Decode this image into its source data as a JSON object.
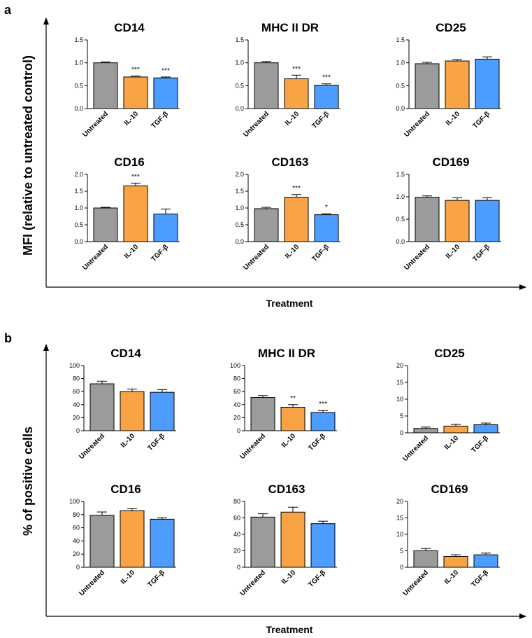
{
  "panels": [
    {
      "letter": "a",
      "ylabel": "MFI (relative to untreated control)",
      "xlabel": "Treatment"
    },
    {
      "letter": "b",
      "ylabel": "% of positive cells",
      "xlabel": "Treatment"
    }
  ],
  "colors": {
    "Untreated": "#9b9b9b",
    "IL-10": "#f9a347",
    "TGF-β": "#4c9dff"
  },
  "chart_data": [
    {
      "panel": "a",
      "type": "bar",
      "title": "CD14",
      "categories": [
        "Untreated",
        "IL-10",
        "TGF-β"
      ],
      "values": [
        1.0,
        0.69,
        0.67
      ],
      "errors": [
        0.02,
        0.02,
        0.02
      ],
      "significance": [
        "",
        "***",
        "***"
      ],
      "ylim": [
        0,
        1.5
      ],
      "yticks": [
        "0.0",
        "0.5",
        "1.0",
        "1.5"
      ]
    },
    {
      "panel": "a",
      "type": "bar",
      "title": "MHC II DR",
      "categories": [
        "Untreated",
        "IL-10",
        "TGF-β"
      ],
      "values": [
        1.0,
        0.65,
        0.51
      ],
      "errors": [
        0.03,
        0.08,
        0.03
      ],
      "significance": [
        "",
        "***",
        "***"
      ],
      "ylim": [
        0,
        1.5
      ],
      "yticks": [
        "0.0",
        "0.5",
        "1.0",
        "1.5"
      ]
    },
    {
      "panel": "a",
      "type": "bar",
      "title": "CD25",
      "categories": [
        "Untreated",
        "IL-10",
        "TGF-β"
      ],
      "values": [
        0.98,
        1.04,
        1.08
      ],
      "errors": [
        0.03,
        0.03,
        0.05
      ],
      "significance": [
        "",
        "",
        ""
      ],
      "ylim": [
        0,
        1.5
      ],
      "yticks": [
        "0.0",
        "0.5",
        "1.0",
        "1.5"
      ]
    },
    {
      "panel": "a",
      "type": "bar",
      "title": "CD16",
      "categories": [
        "Untreated",
        "IL-10",
        "TGF-β"
      ],
      "values": [
        1.0,
        1.66,
        0.82
      ],
      "errors": [
        0.02,
        0.08,
        0.15
      ],
      "significance": [
        "",
        "***",
        ""
      ],
      "ylim": [
        0,
        2.0
      ],
      "yticks": [
        "0.0",
        "0.5",
        "1.0",
        "1.5",
        "2.0"
      ]
    },
    {
      "panel": "a",
      "type": "bar",
      "title": "CD163",
      "categories": [
        "Untreated",
        "IL-10",
        "TGF-β"
      ],
      "values": [
        0.98,
        1.32,
        0.8
      ],
      "errors": [
        0.04,
        0.08,
        0.03
      ],
      "significance": [
        "",
        "***",
        "*"
      ],
      "ylim": [
        0,
        2.0
      ],
      "yticks": [
        "0.0",
        "0.5",
        "1.0",
        "1.5",
        "2.0"
      ]
    },
    {
      "panel": "a",
      "type": "bar",
      "title": "CD169",
      "categories": [
        "Untreated",
        "IL-10",
        "TGF-β"
      ],
      "values": [
        0.99,
        0.92,
        0.92
      ],
      "errors": [
        0.03,
        0.06,
        0.06
      ],
      "significance": [
        "",
        "",
        ""
      ],
      "ylim": [
        0,
        1.5
      ],
      "yticks": [
        "0.0",
        "0.5",
        "1.0",
        "1.5"
      ]
    },
    {
      "panel": "b",
      "type": "bar",
      "title": "CD14",
      "categories": [
        "Untreated",
        "IL-10",
        "TGF-β"
      ],
      "values": [
        72,
        60,
        59
      ],
      "errors": [
        4,
        4,
        4
      ],
      "significance": [
        "",
        "",
        ""
      ],
      "ylim": [
        0,
        100
      ],
      "yticks": [
        "0",
        "20",
        "40",
        "60",
        "80",
        "100"
      ]
    },
    {
      "panel": "b",
      "type": "bar",
      "title": "MHC II DR",
      "categories": [
        "Untreated",
        "IL-10",
        "TGF-β"
      ],
      "values": [
        51,
        36,
        28
      ],
      "errors": [
        3,
        4,
        3
      ],
      "significance": [
        "",
        "**",
        "***"
      ],
      "ylim": [
        0,
        100
      ],
      "yticks": [
        "0",
        "20",
        "40",
        "60",
        "80",
        "100"
      ]
    },
    {
      "panel": "b",
      "type": "bar",
      "title": "CD25",
      "categories": [
        "Untreated",
        "IL-10",
        "TGF-β"
      ],
      "values": [
        1.3,
        2.0,
        2.4
      ],
      "errors": [
        0.4,
        0.5,
        0.5
      ],
      "significance": [
        "",
        "",
        ""
      ],
      "ylim": [
        0,
        20
      ],
      "yticks": [
        "0",
        "5",
        "10",
        "15",
        "20"
      ]
    },
    {
      "panel": "b",
      "type": "bar",
      "title": "CD16",
      "categories": [
        "Untreated",
        "IL-10",
        "TGF-β"
      ],
      "values": [
        79,
        86,
        73
      ],
      "errors": [
        5,
        3,
        2
      ],
      "significance": [
        "",
        "",
        ""
      ],
      "ylim": [
        0,
        100
      ],
      "yticks": [
        "0",
        "20",
        "40",
        "60",
        "80",
        "100"
      ]
    },
    {
      "panel": "b",
      "type": "bar",
      "title": "CD163",
      "categories": [
        "Untreated",
        "IL-10",
        "TGF-β"
      ],
      "values": [
        61,
        67,
        53
      ],
      "errors": [
        4,
        6,
        3
      ],
      "significance": [
        "",
        "",
        ""
      ],
      "ylim": [
        0,
        80
      ],
      "yticks": [
        "0",
        "20",
        "40",
        "60",
        "80"
      ]
    },
    {
      "panel": "b",
      "type": "bar",
      "title": "CD169",
      "categories": [
        "Untreated",
        "IL-10",
        "TGF-β"
      ],
      "values": [
        5.0,
        3.3,
        3.8
      ],
      "errors": [
        0.7,
        0.5,
        0.5
      ],
      "significance": [
        "",
        "",
        ""
      ],
      "ylim": [
        0,
        20
      ],
      "yticks": [
        "0",
        "5",
        "10",
        "15",
        "20"
      ]
    }
  ]
}
